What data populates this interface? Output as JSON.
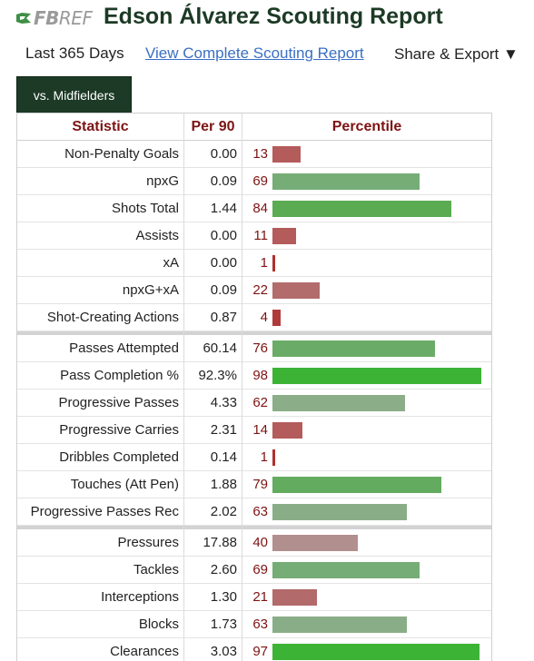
{
  "header": {
    "logo_fb": "FB",
    "logo_ref": "REF",
    "title": "Edson Álvarez Scouting Report"
  },
  "filter": {
    "period": "Last 365 Days",
    "complete_link": "View Complete Scouting Report",
    "share_export": "Share & Export ▼"
  },
  "tab": {
    "label": "vs. Midfielders"
  },
  "table": {
    "headers": {
      "statistic": "Statistic",
      "per90": "Per 90",
      "percentile": "Percentile"
    },
    "groups": [
      [
        {
          "stat": "Non-Penalty Goals",
          "per90": "0.00",
          "pct": "13",
          "color": "#b45b5b"
        },
        {
          "stat": "npxG",
          "per90": "0.09",
          "pct": "69",
          "color": "#76ad77"
        },
        {
          "stat": "Shots Total",
          "per90": "1.44",
          "pct": "84",
          "color": "#5aab52"
        },
        {
          "stat": "Assists",
          "per90": "0.00",
          "pct": "11",
          "color": "#b45b5b"
        },
        {
          "stat": "xA",
          "per90": "0.00",
          "pct": "1",
          "color": "#b02f2f"
        },
        {
          "stat": "npxG+xA",
          "per90": "0.09",
          "pct": "22",
          "color": "#b26c6c"
        },
        {
          "stat": "Shot-Creating Actions",
          "per90": "0.87",
          "pct": "4",
          "color": "#b03a3a"
        }
      ],
      [
        {
          "stat": "Passes Attempted",
          "per90": "60.14",
          "pct": "76",
          "color": "#6aac67"
        },
        {
          "stat": "Pass Completion %",
          "per90": "92.3%",
          "pct": "98",
          "color": "#3db336"
        },
        {
          "stat": "Progressive Passes",
          "per90": "4.33",
          "pct": "62",
          "color": "#8bae89"
        },
        {
          "stat": "Progressive Carries",
          "per90": "2.31",
          "pct": "14",
          "color": "#b45b5b"
        },
        {
          "stat": "Dribbles Completed",
          "per90": "0.14",
          "pct": "1",
          "color": "#b02f2f"
        },
        {
          "stat": "Touches (Att Pen)",
          "per90": "1.88",
          "pct": "79",
          "color": "#63ab5f"
        },
        {
          "stat": "Progressive Passes Rec",
          "per90": "2.02",
          "pct": "63",
          "color": "#89ae87"
        }
      ],
      [
        {
          "stat": "Pressures",
          "per90": "17.88",
          "pct": "40",
          "color": "#b28f8f"
        },
        {
          "stat": "Tackles",
          "per90": "2.60",
          "pct": "69",
          "color": "#76ad77"
        },
        {
          "stat": "Interceptions",
          "per90": "1.30",
          "pct": "21",
          "color": "#b26a6a"
        },
        {
          "stat": "Blocks",
          "per90": "1.73",
          "pct": "63",
          "color": "#89ae87"
        },
        {
          "stat": "Clearances",
          "per90": "3.03",
          "pct": "97",
          "color": "#3db336"
        }
      ]
    ]
  }
}
